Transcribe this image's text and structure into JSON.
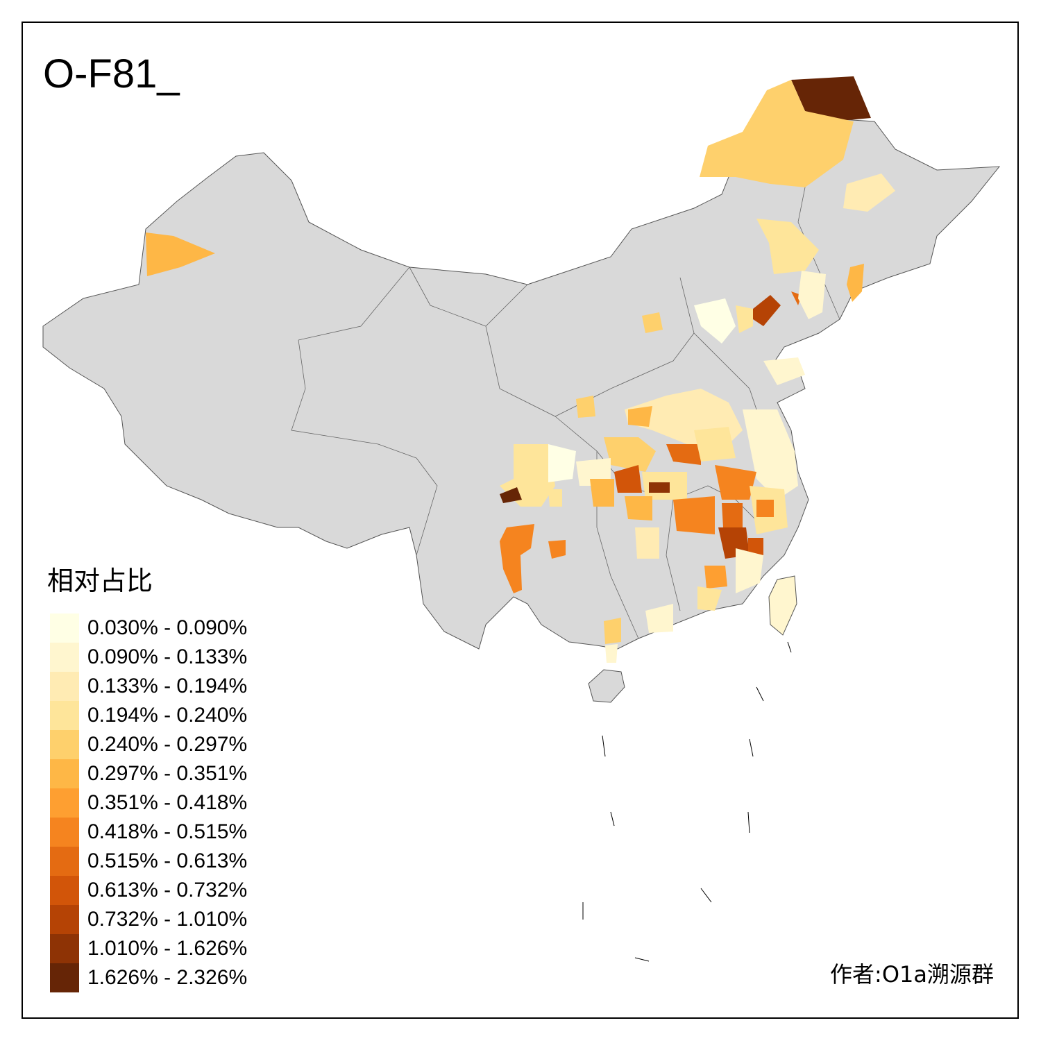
{
  "map": {
    "title": "O-F81_",
    "legend_title": "相对占比",
    "author_credit": "作者:O1a溯源群",
    "base_fill": "#d9d9d9",
    "legend": [
      {
        "label": "0.030% - 0.090%",
        "color": "#ffffe5"
      },
      {
        "label": "0.090% - 0.133%",
        "color": "#fff6cf"
      },
      {
        "label": "0.133% - 0.194%",
        "color": "#ffebb3"
      },
      {
        "label": "0.194% - 0.240%",
        "color": "#fee59a"
      },
      {
        "label": "0.240% - 0.297%",
        "color": "#fed06c"
      },
      {
        "label": "0.297% - 0.351%",
        "color": "#feb746"
      },
      {
        "label": "0.351% - 0.418%",
        "color": "#fe9f31"
      },
      {
        "label": "0.418% - 0.515%",
        "color": "#f5841f"
      },
      {
        "label": "0.515% - 0.613%",
        "color": "#e46b12"
      },
      {
        "label": "0.613% - 0.732%",
        "color": "#d25509"
      },
      {
        "label": "0.732% - 1.010%",
        "color": "#b54305"
      },
      {
        "label": "1.010% - 1.626%",
        "color": "#8e3305"
      },
      {
        "label": "1.626% - 2.326%",
        "color": "#662506"
      }
    ]
  }
}
